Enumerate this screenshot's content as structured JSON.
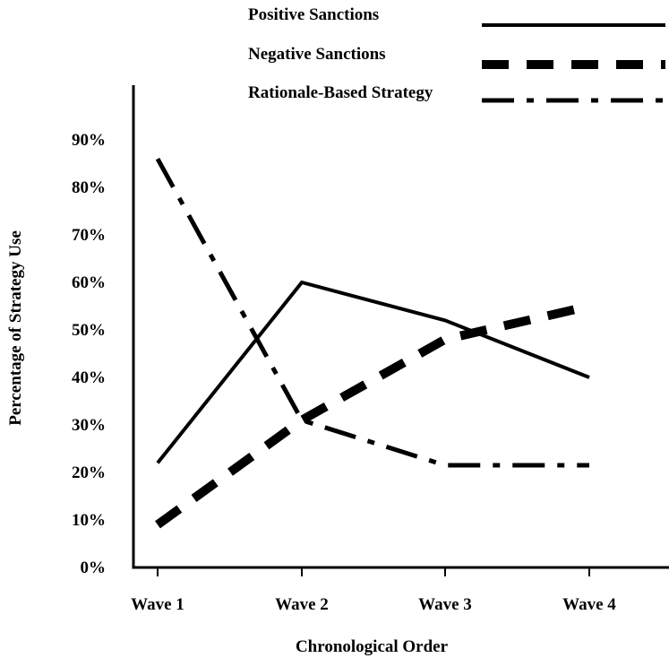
{
  "chart_data": {
    "type": "line",
    "categories": [
      "Wave 1",
      "Wave 2",
      "Wave 3",
      "Wave 4"
    ],
    "series": [
      {
        "name": "Positive Sanctions",
        "values": [
          22,
          60,
          52,
          40
        ],
        "style": "solid"
      },
      {
        "name": "Negative Sanctions",
        "values": [
          9,
          31,
          48,
          55
        ],
        "style": "dashed"
      },
      {
        "name": "Rationale-Based Strategy",
        "values": [
          86,
          31,
          21.5,
          21.5
        ],
        "style": "dash-dot"
      }
    ],
    "ylabel": "Percentage of Strategy Use",
    "xlabel": "Chronological Order",
    "ylim": [
      0,
      100
    ],
    "yticks": [
      0,
      10,
      20,
      30,
      40,
      50,
      60,
      70,
      80,
      90
    ],
    "ytick_labels": [
      "0%",
      "10%",
      "20%",
      "30%",
      "40%",
      "50%",
      "60%",
      "70%",
      "80%",
      "90%"
    ],
    "grid": false,
    "legend_position": "top-right",
    "colors": {
      "line": "#000000",
      "background": "#ffffff"
    }
  }
}
